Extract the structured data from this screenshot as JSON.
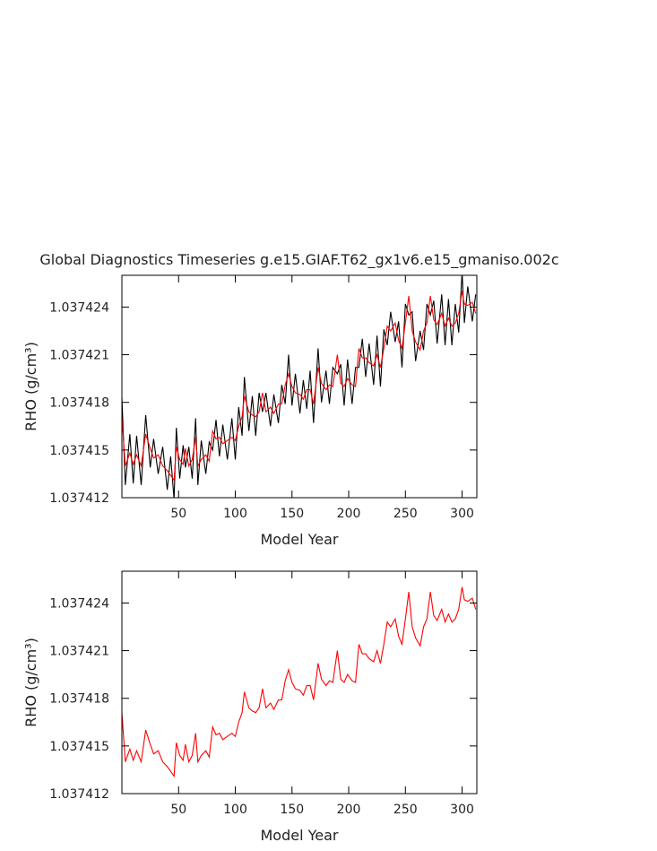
{
  "chart_data": [
    {
      "type": "line",
      "title": "Global Diagnostics Timeseries g.e15.GIAF.T62_gx1v6.e15_gmaniso.002c",
      "xlabel": "Model Year",
      "ylabel": "RHO (g/cm³)",
      "x": [
        0,
        3,
        7,
        10,
        13,
        17,
        21,
        25,
        28,
        32,
        36,
        40,
        43,
        46,
        48,
        51,
        54,
        56,
        59,
        62,
        65,
        67,
        70,
        74,
        77,
        80,
        83,
        86,
        89,
        93,
        97,
        100,
        103,
        106,
        108,
        112,
        115,
        118,
        121,
        124,
        127,
        131,
        134,
        138,
        141,
        144,
        147,
        150,
        153,
        157,
        160,
        163,
        166,
        169,
        173,
        176,
        180,
        183,
        186,
        190,
        193,
        196,
        199,
        203,
        206,
        209,
        212,
        215,
        218,
        222,
        225,
        228,
        231,
        234,
        237,
        241,
        244,
        247,
        250,
        253,
        256,
        259,
        263,
        266,
        269,
        272,
        275,
        278,
        282,
        285,
        288,
        291,
        294,
        297,
        300,
        302,
        305,
        309,
        312
      ],
      "series": [
        {
          "color": "#000000",
          "values": [
            1.0374183,
            1.0374128,
            1.037416,
            1.0374129,
            1.0374159,
            1.0374128,
            1.0374172,
            1.0374139,
            1.0374157,
            1.0374135,
            1.0374152,
            1.0374125,
            1.0374146,
            1.0374119,
            1.0374164,
            1.0374132,
            1.0374153,
            1.0374139,
            1.0374152,
            1.0374132,
            1.037417,
            1.0374128,
            1.0374156,
            1.0374135,
            1.0374155,
            1.037415,
            1.0374169,
            1.0374146,
            1.0374166,
            1.0374144,
            1.037417,
            1.0374144,
            1.0374177,
            1.0374159,
            1.0374196,
            1.0374162,
            1.0374184,
            1.0374159,
            1.0374186,
            1.0374174,
            1.0374186,
            1.0374165,
            1.0374185,
            1.0374167,
            1.0374191,
            1.0374179,
            1.037421,
            1.0374178,
            1.0374198,
            1.0374173,
            1.0374194,
            1.0374176,
            1.03742,
            1.0374167,
            1.0374214,
            1.037418,
            1.03742,
            1.0374179,
            1.0374202,
            1.0374198,
            1.0374204,
            1.0374178,
            1.0374207,
            1.0374179,
            1.0374202,
            1.0374202,
            1.037422,
            1.0374196,
            1.0374217,
            1.0374191,
            1.0374222,
            1.037419,
            1.0374226,
            1.0374216,
            1.0374237,
            1.0374218,
            1.0374231,
            1.0374202,
            1.0374242,
            1.0374235,
            1.0374237,
            1.0374206,
            1.0374225,
            1.0374213,
            1.0374242,
            1.0374235,
            1.0374244,
            1.0374217,
            1.0374248,
            1.0374216,
            1.0374245,
            1.0374216,
            1.0374242,
            1.0374224,
            1.0374262,
            1.037423,
            1.0374253,
            1.0374231,
            1.0374248
          ]
        },
        {
          "color": "#ff0000",
          "values": [
            1.0374171,
            1.037414,
            1.0374148,
            1.0374141,
            1.0374147,
            1.037414,
            1.037416,
            1.0374151,
            1.0374145,
            1.0374147,
            1.037414,
            1.0374137,
            1.0374134,
            1.0374131,
            1.0374152,
            1.0374144,
            1.0374141,
            1.0374151,
            1.037414,
            1.0374144,
            1.0374158,
            1.037414,
            1.0374144,
            1.0374147,
            1.0374143,
            1.0374162,
            1.0374157,
            1.0374158,
            1.0374154,
            1.0374156,
            1.0374158,
            1.0374156,
            1.0374165,
            1.0374171,
            1.0374184,
            1.0374174,
            1.0374172,
            1.0374171,
            1.0374174,
            1.0374186,
            1.0374174,
            1.0374177,
            1.0374173,
            1.0374179,
            1.0374179,
            1.0374191,
            1.0374198,
            1.037419,
            1.0374186,
            1.0374185,
            1.0374182,
            1.0374188,
            1.0374188,
            1.0374179,
            1.0374202,
            1.0374192,
            1.0374188,
            1.0374191,
            1.037419,
            1.037421,
            1.0374192,
            1.037419,
            1.0374195,
            1.0374191,
            1.037419,
            1.0374214,
            1.0374208,
            1.0374208,
            1.0374205,
            1.0374203,
            1.037421,
            1.0374202,
            1.0374214,
            1.0374228,
            1.0374225,
            1.037423,
            1.0374219,
            1.0374214,
            1.037423,
            1.0374247,
            1.0374225,
            1.0374218,
            1.0374213,
            1.0374225,
            1.037423,
            1.0374247,
            1.0374232,
            1.0374229,
            1.0374236,
            1.0374228,
            1.0374233,
            1.0374228,
            1.037423,
            1.0374236,
            1.037425,
            1.0374242,
            1.0374241,
            1.0374243,
            1.0374236
          ]
        }
      ],
      "xlim": [
        0,
        313
      ],
      "xticks": [
        50,
        100,
        150,
        200,
        250,
        300
      ],
      "ylim": [
        1.037412,
        1.037426
      ],
      "yticks": [
        1.037412,
        1.037415,
        1.037418,
        1.037421,
        1.037424
      ]
    },
    {
      "type": "line",
      "xlabel": "Model Year",
      "ylabel": "RHO (g/cm³)",
      "x": [
        0,
        3,
        7,
        10,
        13,
        17,
        21,
        25,
        28,
        32,
        36,
        40,
        43,
        46,
        48,
        51,
        54,
        56,
        59,
        62,
        65,
        67,
        70,
        74,
        77,
        80,
        83,
        86,
        89,
        93,
        97,
        100,
        103,
        106,
        108,
        112,
        115,
        118,
        121,
        124,
        127,
        131,
        134,
        138,
        141,
        144,
        147,
        150,
        153,
        157,
        160,
        163,
        166,
        169,
        173,
        176,
        180,
        183,
        186,
        190,
        193,
        196,
        199,
        203,
        206,
        209,
        212,
        215,
        218,
        222,
        225,
        228,
        231,
        234,
        237,
        241,
        244,
        247,
        250,
        253,
        256,
        259,
        263,
        266,
        269,
        272,
        275,
        278,
        282,
        285,
        288,
        291,
        294,
        297,
        300,
        302,
        305,
        309,
        312
      ],
      "series": [
        {
          "color": "#ff0000",
          "values": [
            1.0374171,
            1.037414,
            1.0374148,
            1.0374141,
            1.0374147,
            1.037414,
            1.037416,
            1.0374151,
            1.0374145,
            1.0374147,
            1.037414,
            1.0374137,
            1.0374134,
            1.0374131,
            1.0374152,
            1.0374144,
            1.0374141,
            1.0374151,
            1.037414,
            1.0374144,
            1.0374158,
            1.037414,
            1.0374144,
            1.0374147,
            1.0374143,
            1.0374162,
            1.0374157,
            1.0374158,
            1.0374154,
            1.0374156,
            1.0374158,
            1.0374156,
            1.0374165,
            1.0374171,
            1.0374184,
            1.0374174,
            1.0374172,
            1.0374171,
            1.0374174,
            1.0374186,
            1.0374174,
            1.0374177,
            1.0374173,
            1.0374179,
            1.0374179,
            1.0374191,
            1.0374198,
            1.037419,
            1.0374186,
            1.0374185,
            1.0374182,
            1.0374188,
            1.0374188,
            1.0374179,
            1.0374202,
            1.0374192,
            1.0374188,
            1.0374191,
            1.037419,
            1.037421,
            1.0374192,
            1.037419,
            1.0374195,
            1.0374191,
            1.037419,
            1.0374214,
            1.0374208,
            1.0374208,
            1.0374205,
            1.0374203,
            1.037421,
            1.0374202,
            1.0374214,
            1.0374228,
            1.0374225,
            1.037423,
            1.0374219,
            1.0374214,
            1.037423,
            1.0374247,
            1.0374225,
            1.0374218,
            1.0374213,
            1.0374225,
            1.037423,
            1.0374247,
            1.0374232,
            1.0374229,
            1.0374236,
            1.0374228,
            1.0374233,
            1.0374228,
            1.037423,
            1.0374236,
            1.037425,
            1.0374242,
            1.0374241,
            1.0374243,
            1.0374236
          ]
        }
      ],
      "xlim": [
        0,
        313
      ],
      "xticks": [
        50,
        100,
        150,
        200,
        250,
        300
      ],
      "ylim": [
        1.037412,
        1.037426
      ],
      "yticks": [
        1.037412,
        1.037415,
        1.037418,
        1.037421,
        1.037424
      ]
    }
  ]
}
